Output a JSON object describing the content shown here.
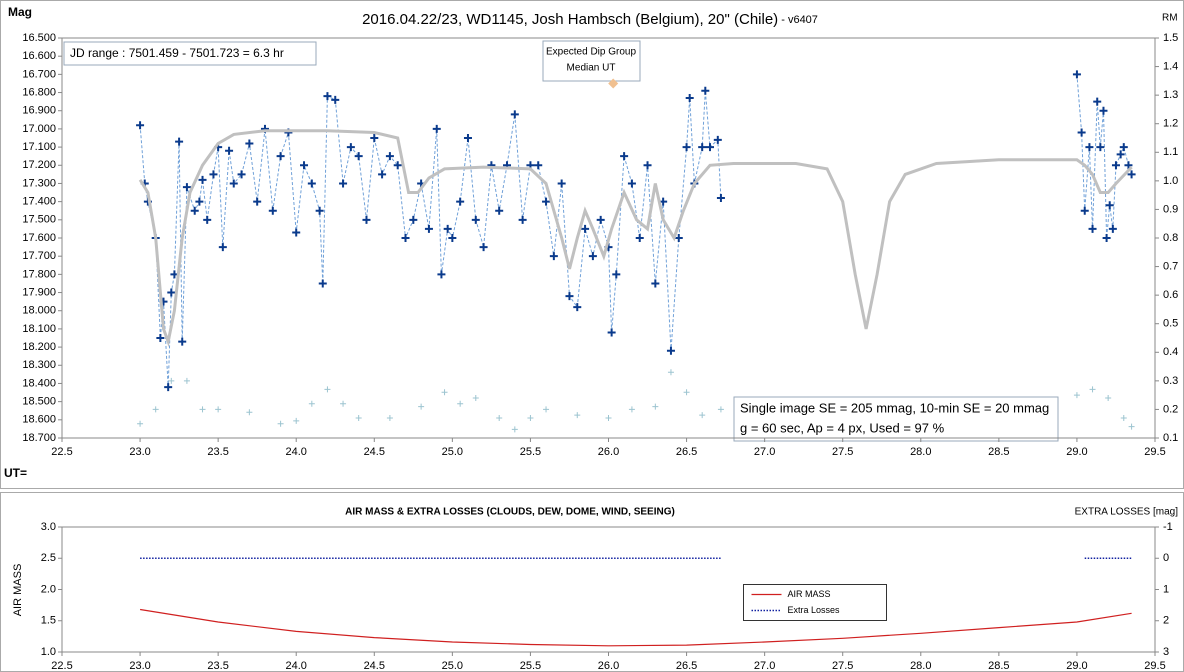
{
  "chart_data": [
    {
      "type": "line",
      "title": "2016.04.22/23,  WD1145, Josh Hambsch  (Belgium), 20\" (Chile)",
      "subtitle": " - v6407",
      "ylabel": "Mag",
      "y2label": "RM",
      "xlabel": "UT=",
      "annotations": [
        "JD range  : 7501.459 - 7501.723  = 6.3 hr",
        "Single image SE = 205 mmag, 10-min SE = 20 mmag",
        "g = 60 sec, Ap = 4 px, Used = 97 %"
      ],
      "dip_marker": {
        "text": [
          "Expected Dip Group",
          "Median UT"
        ],
        "x": 26.03,
        "y": 16.75,
        "color": "#f0c090"
      },
      "xlim": [
        22.5,
        29.5
      ],
      "xticks": [
        22.5,
        {
          "value": 23,
          "label": "23.0"
        },
        23.5,
        {
          "value": 24,
          "label": "24.0"
        },
        24.5,
        {
          "value": 25,
          "label": "25.0"
        },
        25.5,
        {
          "value": 26,
          "label": "26.0"
        },
        26.5,
        {
          "value": 27,
          "label": "27.0"
        },
        27.5,
        {
          "value": 28,
          "label": "28.0"
        },
        28.5,
        {
          "value": 29,
          "label": "29.0"
        },
        29.5
      ],
      "ylim": [
        18.7,
        16.5
      ],
      "yticks": [
        {
          "value": 16.5,
          "label": "16.500"
        },
        {
          "value": 16.6,
          "label": "16.600"
        },
        {
          "value": 16.7,
          "label": "16.700"
        },
        {
          "value": 16.8,
          "label": "16.800"
        },
        {
          "value": 16.9,
          "label": "16.900"
        },
        {
          "value": 17.0,
          "label": "17.000"
        },
        {
          "value": 17.1,
          "label": "17.100"
        },
        {
          "value": 17.2,
          "label": "17.200"
        },
        {
          "value": 17.3,
          "label": "17.300"
        },
        {
          "value": 17.4,
          "label": "17.400"
        },
        {
          "value": 17.5,
          "label": "17.500"
        },
        {
          "value": 17.6,
          "label": "17.600"
        },
        {
          "value": 17.7,
          "label": "17.700"
        },
        {
          "value": 17.8,
          "label": "17.800"
        },
        {
          "value": 17.9,
          "label": "17.900"
        },
        {
          "value": 18.0,
          "label": "18.000"
        },
        {
          "value": 18.1,
          "label": "18.100"
        },
        {
          "value": 18.2,
          "label": "18.200"
        },
        {
          "value": 18.3,
          "label": "18.300"
        },
        {
          "value": 18.4,
          "label": "18.400"
        },
        {
          "value": 18.5,
          "label": "18.500"
        },
        {
          "value": 18.6,
          "label": "18.600"
        },
        {
          "value": 18.7,
          "label": "18.700"
        }
      ],
      "y2lim": [
        0.1,
        1.5
      ],
      "y2ticks": [
        0.1,
        0.2,
        0.3,
        0.4,
        0.5,
        0.6,
        0.7,
        0.8,
        0.9,
        {
          "value": 1,
          "label": "1.0"
        },
        1.1,
        1.2,
        1.3,
        1.4,
        1.5
      ],
      "series": [
        {
          "color": "#6fa0d8",
          "line": "dashed",
          "marker": "none",
          "x": [
            23.0,
            23.03,
            23.05,
            23.1,
            23.13,
            23.15,
            23.18,
            23.2,
            23.22,
            23.25,
            23.27,
            23.3,
            23.35,
            23.38,
            23.4,
            23.43,
            23.47,
            23.5,
            23.53,
            23.57,
            23.6,
            23.65,
            23.7,
            23.75,
            23.8,
            23.85,
            23.9,
            23.95,
            24.0,
            24.05,
            24.1,
            24.15,
            24.17,
            24.2,
            24.25,
            24.3,
            24.35,
            24.4,
            24.45,
            24.5,
            24.55,
            24.6,
            24.65,
            24.7,
            24.75,
            24.8,
            24.85,
            24.9,
            24.93,
            24.97,
            25.0,
            25.05,
            25.1,
            25.15,
            25.2,
            25.25,
            25.3,
            25.35,
            25.4,
            25.45,
            25.5,
            25.55,
            25.6,
            25.65,
            25.7,
            25.75,
            25.8,
            25.85,
            25.9,
            25.95,
            26.0,
            26.02,
            26.05,
            26.1,
            26.15,
            26.2,
            26.25,
            26.3,
            26.35,
            26.4,
            26.45,
            26.5,
            26.52,
            26.55,
            26.6,
            26.62,
            26.65,
            26.7,
            26.72,
            null,
            29.0,
            29.03,
            29.05,
            29.08,
            29.1,
            29.13,
            29.15,
            29.17,
            29.19,
            29.21,
            29.23,
            29.25,
            29.28,
            29.3,
            29.33,
            29.35
          ],
          "values": [
            16.98,
            17.3,
            17.4,
            17.6,
            18.15,
            17.95,
            18.42,
            17.9,
            17.8,
            17.07,
            18.17,
            17.32,
            17.45,
            17.4,
            17.28,
            17.5,
            17.25,
            17.1,
            17.65,
            17.12,
            17.3,
            17.25,
            17.08,
            17.4,
            17.0,
            17.45,
            17.15,
            17.02,
            17.57,
            17.2,
            17.3,
            17.45,
            17.85,
            16.82,
            16.84,
            17.3,
            17.1,
            17.15,
            17.5,
            17.05,
            17.25,
            17.15,
            17.2,
            17.6,
            17.5,
            17.3,
            17.55,
            17.0,
            17.8,
            17.55,
            17.6,
            17.4,
            17.05,
            17.5,
            17.65,
            17.2,
            17.45,
            17.2,
            16.92,
            17.5,
            17.2,
            17.2,
            17.4,
            17.7,
            17.3,
            17.92,
            17.98,
            17.55,
            17.7,
            17.5,
            17.65,
            18.12,
            17.8,
            17.15,
            17.3,
            17.6,
            17.2,
            17.85,
            17.4,
            18.22,
            17.6,
            17.1,
            16.83,
            17.3,
            17.1,
            16.79,
            17.1,
            17.06,
            17.38,
            null,
            16.7,
            17.02,
            17.45,
            17.1,
            17.55,
            16.85,
            17.1,
            16.9,
            17.6,
            17.42,
            17.55,
            17.2,
            17.14,
            17.1,
            17.2,
            17.25
          ]
        },
        {
          "color": "#0a3a8c",
          "line": "none",
          "marker": "cross",
          "x": [
            23.0,
            23.03,
            23.05,
            23.1,
            23.13,
            23.15,
            23.18,
            23.2,
            23.22,
            23.25,
            23.27,
            23.3,
            23.35,
            23.38,
            23.4,
            23.43,
            23.47,
            23.5,
            23.53,
            23.57,
            23.6,
            23.65,
            23.7,
            23.75,
            23.8,
            23.85,
            23.9,
            23.95,
            24.0,
            24.05,
            24.1,
            24.15,
            24.17,
            24.2,
            24.25,
            24.3,
            24.35,
            24.4,
            24.45,
            24.5,
            24.55,
            24.6,
            24.65,
            24.7,
            24.75,
            24.8,
            24.85,
            24.9,
            24.93,
            24.97,
            25.0,
            25.05,
            25.1,
            25.15,
            25.2,
            25.25,
            25.3,
            25.35,
            25.4,
            25.45,
            25.5,
            25.55,
            25.6,
            25.65,
            25.7,
            25.75,
            25.8,
            25.85,
            25.9,
            25.95,
            26.0,
            26.02,
            26.05,
            26.1,
            26.15,
            26.2,
            26.25,
            26.3,
            26.35,
            26.4,
            26.45,
            26.5,
            26.52,
            26.55,
            26.6,
            26.62,
            26.65,
            26.7,
            26.72,
            29.0,
            29.03,
            29.05,
            29.08,
            29.1,
            29.13,
            29.15,
            29.17,
            29.19,
            29.21,
            29.23,
            29.25,
            29.28,
            29.3,
            29.33,
            29.35
          ],
          "values": [
            16.98,
            17.3,
            17.4,
            17.6,
            18.15,
            17.95,
            18.42,
            17.9,
            17.8,
            17.07,
            18.17,
            17.32,
            17.45,
            17.4,
            17.28,
            17.5,
            17.25,
            17.1,
            17.65,
            17.12,
            17.3,
            17.25,
            17.08,
            17.4,
            17.0,
            17.45,
            17.15,
            17.02,
            17.57,
            17.2,
            17.3,
            17.45,
            17.85,
            16.82,
            16.84,
            17.3,
            17.1,
            17.15,
            17.5,
            17.05,
            17.25,
            17.15,
            17.2,
            17.6,
            17.5,
            17.3,
            17.55,
            17.0,
            17.8,
            17.55,
            17.6,
            17.4,
            17.05,
            17.5,
            17.65,
            17.2,
            17.45,
            17.2,
            16.92,
            17.5,
            17.2,
            17.2,
            17.4,
            17.7,
            17.3,
            17.92,
            17.98,
            17.55,
            17.7,
            17.5,
            17.65,
            18.12,
            17.8,
            17.15,
            17.3,
            17.6,
            17.2,
            17.85,
            17.4,
            18.22,
            17.6,
            17.1,
            16.83,
            17.3,
            17.1,
            16.79,
            17.1,
            17.06,
            17.38,
            16.7,
            17.02,
            17.45,
            17.1,
            17.55,
            16.85,
            17.1,
            16.9,
            17.6,
            17.42,
            17.55,
            17.2,
            17.14,
            17.1,
            17.2,
            17.25
          ]
        },
        {
          "color": "#c0c0c0",
          "line": "thick",
          "marker": "none",
          "x": [
            23.0,
            23.05,
            23.1,
            23.15,
            23.18,
            23.22,
            23.27,
            23.32,
            23.4,
            23.5,
            23.6,
            23.8,
            24.2,
            24.5,
            24.65,
            24.72,
            24.78,
            24.85,
            24.95,
            25.2,
            25.5,
            25.6,
            25.7,
            25.75,
            25.8,
            25.85,
            25.9,
            25.97,
            26.02,
            26.1,
            26.18,
            26.25,
            26.3,
            26.35,
            26.42,
            26.48,
            26.55,
            26.65,
            26.8,
            27.2,
            27.4,
            27.5,
            27.58,
            27.65,
            27.72,
            27.8,
            27.9,
            28.1,
            28.5,
            29.0,
            29.05,
            29.1,
            29.15,
            29.2,
            29.25,
            29.35
          ],
          "values": [
            17.28,
            17.35,
            17.6,
            18.1,
            18.17,
            18.0,
            17.6,
            17.35,
            17.2,
            17.08,
            17.03,
            17.01,
            17.01,
            17.02,
            17.05,
            17.35,
            17.35,
            17.27,
            17.22,
            17.21,
            17.22,
            17.3,
            17.6,
            17.77,
            17.6,
            17.45,
            17.55,
            17.7,
            17.55,
            17.35,
            17.5,
            17.55,
            17.3,
            17.5,
            17.6,
            17.45,
            17.3,
            17.2,
            17.19,
            17.19,
            17.22,
            17.4,
            17.8,
            18.1,
            17.8,
            17.4,
            17.25,
            17.19,
            17.17,
            17.17,
            17.2,
            17.25,
            17.35,
            17.35,
            17.3,
            17.21
          ]
        },
        {
          "color": "#9cc4d0",
          "line": "none",
          "marker": "plus",
          "axis": "y2",
          "x": [
            23.0,
            23.1,
            23.2,
            23.3,
            23.4,
            23.5,
            23.7,
            23.9,
            24.0,
            24.1,
            24.2,
            24.3,
            24.4,
            24.6,
            24.8,
            24.95,
            25.05,
            25.15,
            25.3,
            25.4,
            25.5,
            25.6,
            25.8,
            26.0,
            26.15,
            26.3,
            26.4,
            26.5,
            26.6,
            26.72,
            29.0,
            29.1,
            29.2,
            29.3,
            29.35
          ],
          "values": [
            0.15,
            0.2,
            0.3,
            0.3,
            0.2,
            0.2,
            0.19,
            0.15,
            0.16,
            0.22,
            0.27,
            0.22,
            0.17,
            0.17,
            0.21,
            0.26,
            0.22,
            0.24,
            0.17,
            0.13,
            0.17,
            0.2,
            0.18,
            0.17,
            0.2,
            0.21,
            0.33,
            0.26,
            0.18,
            0.2,
            0.25,
            0.27,
            0.24,
            0.17,
            0.14
          ]
        }
      ]
    },
    {
      "type": "line",
      "title": "AIR MASS & EXTRA LOSSES (CLOUDS, DEW, DOME, WIND, SEEING)",
      "ylabel": "AIR MASS",
      "y2label": "EXTRA LOSSES [mag]",
      "legend": "center",
      "xlim": [
        22.5,
        29.5
      ],
      "xticks": [
        22.5,
        {
          "value": 23,
          "label": "23.0"
        },
        23.5,
        {
          "value": 24,
          "label": "24.0"
        },
        24.5,
        {
          "value": 25,
          "label": "25.0"
        },
        25.5,
        {
          "value": 26,
          "label": "26.0"
        },
        26.5,
        {
          "value": 27,
          "label": "27.0"
        },
        27.5,
        {
          "value": 28,
          "label": "28.0"
        },
        28.5,
        {
          "value": 29,
          "label": "29.0"
        },
        29.5
      ],
      "ylim": [
        1,
        3
      ],
      "yticks": [
        {
          "value": 1,
          "label": "1.0"
        },
        1.5,
        {
          "value": 2,
          "label": "2.0"
        },
        2.5,
        {
          "value": 3,
          "label": "3.0"
        }
      ],
      "y2lim": [
        3,
        -1
      ],
      "y2ticks": [
        3,
        2,
        1,
        0,
        -1
      ],
      "series": [
        {
          "name": "AIR MASS",
          "color": "#d02020",
          "line": "solid",
          "marker": "none",
          "x": [
            23.0,
            23.5,
            24.0,
            24.5,
            25.0,
            25.5,
            26.0,
            26.5,
            27.0,
            27.5,
            28.0,
            28.5,
            29.0,
            29.35
          ],
          "values": [
            1.68,
            1.48,
            1.33,
            1.23,
            1.16,
            1.12,
            1.1,
            1.11,
            1.16,
            1.22,
            1.3,
            1.39,
            1.48,
            1.62
          ]
        },
        {
          "name": "Extra Losses",
          "color": "#1020a0",
          "line": "dotted",
          "marker": "none",
          "axis": "y2",
          "x": [
            23.0,
            26.72,
            null,
            29.05,
            29.35
          ],
          "values": [
            0,
            0,
            null,
            0,
            0
          ]
        }
      ]
    }
  ]
}
